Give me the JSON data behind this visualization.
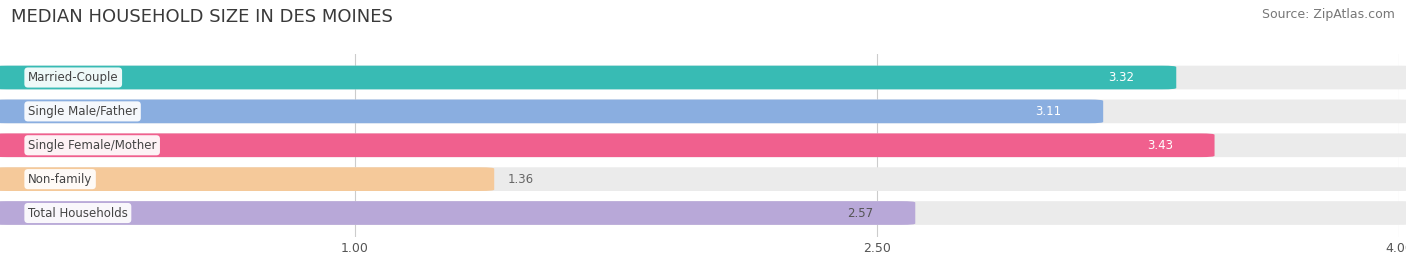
{
  "title": "MEDIAN HOUSEHOLD SIZE IN DES MOINES",
  "source": "Source: ZipAtlas.com",
  "categories": [
    "Married-Couple",
    "Single Male/Father",
    "Single Female/Mother",
    "Non-family",
    "Total Households"
  ],
  "values": [
    3.32,
    3.11,
    3.43,
    1.36,
    2.57
  ],
  "bar_colors": [
    "#38bbb4",
    "#8aaee0",
    "#f0608e",
    "#f5c99a",
    "#b8a8d8"
  ],
  "xlim": [
    0.0,
    4.0
  ],
  "xticks": [
    1.0,
    2.5,
    4.0
  ],
  "xstart": 0.0,
  "title_fontsize": 13,
  "source_fontsize": 9,
  "bar_height": 0.62,
  "background_color": "#ffffff",
  "bar_background_color": "#ebebeb",
  "label_text_color": "#444444",
  "value_color_inside": [
    "#ffffff",
    "#ffffff",
    "#ffffff",
    "#555555",
    "#555555"
  ],
  "value_threshold": 2.0
}
